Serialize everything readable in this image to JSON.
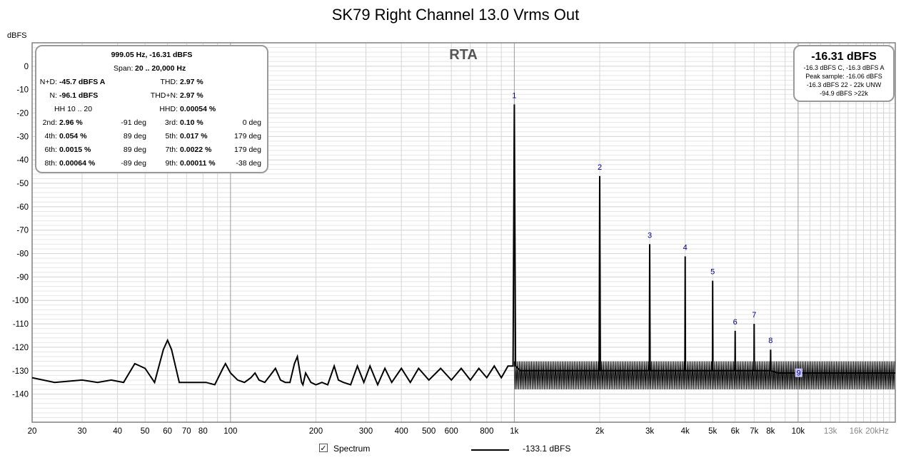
{
  "title": "SK79 Right Channel 13.0 Vrms Out",
  "chart_data": {
    "type": "line",
    "plot_label": "RTA",
    "ylabel": "dBFS",
    "xscale": "log",
    "xlim": [
      20,
      22000
    ],
    "ylim": [
      -152,
      10
    ],
    "grid": true,
    "y_ticks": [
      0,
      -10,
      -20,
      -30,
      -40,
      -50,
      -60,
      -70,
      -80,
      -90,
      -100,
      -110,
      -120,
      -130,
      -140
    ],
    "y_tick_labels": [
      "0",
      "-10",
      "-20",
      "-30",
      "-40",
      "-50",
      "-60",
      "-70",
      "-80",
      "-90",
      "-100",
      "-110",
      "-120",
      "-130",
      "-140"
    ],
    "x_ticks": [
      20,
      30,
      40,
      50,
      60,
      70,
      80,
      100,
      200,
      300,
      400,
      500,
      600,
      800,
      1000,
      2000,
      3000,
      4000,
      5000,
      6000,
      7000,
      8000,
      10000,
      13000,
      16000,
      20000
    ],
    "x_tick_labels": [
      "20",
      "30",
      "40",
      "50",
      "60",
      "70",
      "80",
      "100",
      "200",
      "300",
      "400",
      "500",
      "600",
      "800",
      "1k",
      "2k",
      "3k",
      "4k",
      "5k",
      "6k",
      "7k",
      "8k",
      "10k",
      "13k",
      "16k",
      "20kHz"
    ],
    "harmonics": [
      {
        "label": "1",
        "x": 1000,
        "y": -16.3
      },
      {
        "label": "2",
        "x": 2000,
        "y": -46.9
      },
      {
        "label": "3",
        "x": 3000,
        "y": -76.0
      },
      {
        "label": "4",
        "x": 4000,
        "y": -81.2
      },
      {
        "label": "5",
        "x": 5000,
        "y": -91.6
      },
      {
        "label": "6",
        "x": 6000,
        "y": -113.0
      },
      {
        "label": "7",
        "x": 7000,
        "y": -110.0
      },
      {
        "label": "8",
        "x": 8000,
        "y": -121.0
      },
      {
        "label": "9",
        "x": 9000,
        "y": -131.5
      }
    ],
    "series": [
      {
        "x": [
          20,
          24,
          30,
          34,
          38,
          42,
          46,
          50,
          54,
          58,
          60,
          62,
          66,
          70,
          76,
          82,
          88,
          94,
          96,
          100,
          106,
          112,
          118,
          122,
          126,
          132,
          138,
          144,
          150,
          156,
          162,
          168,
          172,
          178,
          180,
          184,
          192,
          200,
          210,
          220,
          232,
          240,
          250,
          265,
          280,
          295,
          310,
          330,
          350,
          370,
          400,
          430,
          460,
          500,
          550,
          600,
          650,
          700,
          750,
          800,
          850,
          900,
          950,
          990,
          1000,
          1010,
          1050,
          1200,
          1500,
          1800,
          1990,
          2000,
          2010,
          2200,
          2500,
          2990,
          3000,
          3010,
          3500,
          3990,
          4000,
          4010,
          4500,
          4990,
          5000,
          5010,
          5500,
          5990,
          6000,
          6010,
          6500,
          6990,
          7000,
          7010,
          7500,
          7990,
          8000,
          8010,
          8500,
          10000,
          12000,
          14000,
          16000,
          18000,
          20000,
          22000
        ],
        "y": [
          -133,
          -135,
          -134,
          -135,
          -134,
          -135,
          -127,
          -129,
          -135,
          -121,
          -117,
          -121,
          -135,
          -135,
          -135,
          -135,
          -136,
          -129,
          -127,
          -131,
          -134,
          -135,
          -133,
          -131,
          -134,
          -135,
          -132,
          -129,
          -134,
          -135,
          -135,
          -127,
          -124,
          -135,
          -136,
          -131,
          -135,
          -136,
          -135,
          -136,
          -128,
          -134,
          -135,
          -136,
          -128,
          -135,
          -128,
          -136,
          -129,
          -135,
          -129,
          -135,
          -129,
          -134,
          -129,
          -134,
          -129,
          -134,
          -129,
          -133,
          -128,
          -133,
          -128,
          -128,
          -16.3,
          -128,
          -130,
          -130,
          -130,
          -130,
          -130,
          -46.9,
          -130,
          -130,
          -130,
          -130,
          -76,
          -130,
          -130,
          -130,
          -81.2,
          -130,
          -130,
          -130,
          -91.6,
          -130,
          -130,
          -130,
          -113,
          -130,
          -130,
          -130,
          -110,
          -130,
          -130,
          -130,
          -121,
          -130,
          -131,
          -131,
          -131,
          -131,
          -131,
          -131,
          -131,
          -131
        ]
      }
    ],
    "noise_floor_band": {
      "x_from": 1000,
      "x_to": 22000,
      "y_top": -126,
      "y_bottom": -138
    },
    "legend": [
      {
        "label": "Spectrum",
        "checked": true,
        "value": "-133.1 dBFS"
      }
    ]
  },
  "info_box": {
    "header": "999.05 Hz, -16.31 dBFS",
    "span_label": "Span:",
    "span_value": "20 .. 20,000 Hz",
    "nd_label": "N+D:",
    "nd_value": "-45.7 dBFS A",
    "thd_label": "THD:",
    "thd_value": "2.97 %",
    "n_label": "N:",
    "n_value": "-96.1 dBFS",
    "thdn_label": "THD+N:",
    "thdn_value": "2.97 %",
    "hh_label": "HH 10 .. 20",
    "hhd_label": "HHD:",
    "hhd_value": "0.00054 %",
    "harmonics": [
      {
        "l_label": "2nd:",
        "l_value": "2.96 %",
        "l_phase": "-91 deg",
        "r_label": "3rd:",
        "r_value": "0.10 %",
        "r_phase": "0 deg"
      },
      {
        "l_label": "4th:",
        "l_value": "0.054 %",
        "l_phase": "89 deg",
        "r_label": "5th:",
        "r_value": "0.017 %",
        "r_phase": "179 deg"
      },
      {
        "l_label": "6th:",
        "l_value": "0.0015 %",
        "l_phase": "89 deg",
        "r_label": "7th:",
        "r_value": "0.0022 %",
        "r_phase": "179 deg"
      },
      {
        "l_label": "8th:",
        "l_value": "0.00064 %",
        "l_phase": "-89 deg",
        "r_label": "9th:",
        "r_value": "0.00011 %",
        "r_phase": "-38 deg"
      }
    ]
  },
  "level_box": {
    "main": "-16.31 dBFS",
    "line1": "-16.3 dBFS C, -16.3 dBFS A",
    "line2": "Peak sample: -16.06 dBFS",
    "line3": "-16.3 dBFS 22 - 22k UNW",
    "line4": "-94.9 dBFS >22k"
  },
  "colors": {
    "trace": "#000000",
    "grid": "#d6d6d6",
    "grid_major": "#9a9a9a",
    "harmonic_label": "#000080",
    "frame": "#808080"
  }
}
